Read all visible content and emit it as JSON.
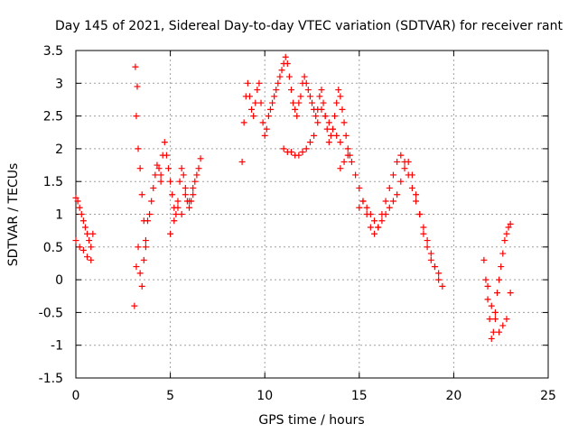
{
  "chart_data": {
    "type": "scatter",
    "title": "Day 145 of 2021, Sidereal Day-to-day VTEC variation (SDTVAR) for receiver rant",
    "xlabel": "GPS time / hours",
    "ylabel": "SDTVAR / TECUs",
    "xlim": [
      0,
      25
    ],
    "ylim": [
      -1.5,
      3.5
    ],
    "x_ticks": [
      0,
      5,
      10,
      15,
      20,
      25
    ],
    "y_ticks": [
      -1.5,
      -1,
      -0.5,
      0,
      0.5,
      1,
      1.5,
      2,
      2.5,
      3,
      3.5
    ],
    "x_tick_labels": [
      "0",
      "5",
      "10",
      "15",
      "20",
      "25"
    ],
    "y_tick_labels": [
      "-1.5",
      "-1",
      "-0.5",
      "0",
      "0.5",
      "1",
      "1.5",
      "2",
      "2.5",
      "3",
      "3.5"
    ],
    "grid": true,
    "marker": "+",
    "color": "#ff0000",
    "series": [
      {
        "name": "SDTVAR",
        "x": [
          0.0,
          0.1,
          0.2,
          0.3,
          0.4,
          0.5,
          0.6,
          0.7,
          0.8,
          0.9,
          0.0,
          0.2,
          0.4,
          0.6,
          0.8,
          3.1,
          3.2,
          3.3,
          3.4,
          3.5,
          3.6,
          3.7,
          3.8,
          3.9,
          4.0,
          4.1,
          4.2,
          4.3,
          4.4,
          4.5,
          3.15,
          3.25,
          3.2,
          3.3,
          3.4,
          3.5,
          3.6,
          3.7,
          4.5,
          4.6,
          4.7,
          4.8,
          4.9,
          5.0,
          5.1,
          5.2,
          5.3,
          5.4,
          5.5,
          5.6,
          5.7,
          5.8,
          5.9,
          6.0,
          6.1,
          6.2,
          6.3,
          6.4,
          6.5,
          6.6,
          5.0,
          5.2,
          5.4,
          5.6,
          5.8,
          6.0,
          6.2,
          8.8,
          8.9,
          9.0,
          9.1,
          9.2,
          9.3,
          9.4,
          9.5,
          9.6,
          9.7,
          9.8,
          9.9,
          10.0,
          10.1,
          10.2,
          10.3,
          10.4,
          10.5,
          10.6,
          10.7,
          10.8,
          10.9,
          11.0,
          11.1,
          11.2,
          11.3,
          11.4,
          11.5,
          11.6,
          11.7,
          11.8,
          11.9,
          11.0,
          11.2,
          11.4,
          11.6,
          11.8,
          12.0,
          12.2,
          12.4,
          12.6,
          12.8,
          13.0,
          13.2,
          13.4,
          13.6,
          13.8,
          14.0,
          12.0,
          12.1,
          12.2,
          12.3,
          12.4,
          12.5,
          12.6,
          12.7,
          12.8,
          12.9,
          13.0,
          13.1,
          13.2,
          13.3,
          13.4,
          13.5,
          13.6,
          13.7,
          13.8,
          13.9,
          14.0,
          14.1,
          14.2,
          14.3,
          14.4,
          14.5,
          14.0,
          14.2,
          14.4,
          14.6,
          14.8,
          15.0,
          15.2,
          15.4,
          15.6,
          15.8,
          16.0,
          16.2,
          16.4,
          16.6,
          16.8,
          17.0,
          17.2,
          17.4,
          17.6,
          17.8,
          18.0,
          18.2,
          18.4,
          18.6,
          18.8,
          19.0,
          19.2,
          19.4,
          15.0,
          15.2,
          15.4,
          15.6,
          15.8,
          16.0,
          16.2,
          16.4,
          16.6,
          16.8,
          17.0,
          17.2,
          17.4,
          17.6,
          17.8,
          18.0,
          18.2,
          18.4,
          18.6,
          18.8,
          19.0,
          19.2,
          21.6,
          21.7,
          21.8,
          21.9,
          22.0,
          22.1,
          22.2,
          22.3,
          22.4,
          22.5,
          22.6,
          22.7,
          22.8,
          22.9,
          23.0,
          21.8,
          22.0,
          22.2,
          22.4,
          22.6,
          22.8,
          23.0
        ],
        "y": [
          1.25,
          1.2,
          1.1,
          1.0,
          0.9,
          0.8,
          0.7,
          0.6,
          0.5,
          0.7,
          0.6,
          0.5,
          0.45,
          0.35,
          0.3,
          -0.4,
          0.2,
          0.5,
          0.1,
          -0.1,
          0.3,
          0.6,
          0.9,
          1.0,
          1.2,
          1.4,
          1.6,
          1.75,
          1.7,
          1.5,
          3.25,
          2.95,
          2.5,
          2.0,
          1.7,
          1.3,
          0.9,
          0.5,
          1.6,
          1.9,
          2.1,
          1.9,
          1.7,
          1.5,
          1.3,
          1.1,
          1.0,
          1.2,
          1.5,
          1.7,
          1.6,
          1.4,
          1.2,
          1.1,
          1.2,
          1.3,
          1.5,
          1.6,
          1.7,
          1.85,
          0.7,
          0.9,
          1.1,
          1.0,
          1.3,
          1.2,
          1.4,
          1.8,
          2.4,
          2.8,
          3.0,
          2.8,
          2.6,
          2.5,
          2.7,
          2.9,
          3.0,
          2.7,
          2.4,
          2.2,
          2.3,
          2.5,
          2.6,
          2.7,
          2.8,
          2.9,
          3.0,
          3.1,
          3.2,
          3.3,
          3.4,
          3.3,
          3.1,
          2.9,
          2.7,
          2.6,
          2.5,
          2.7,
          2.8,
          2.0,
          1.95,
          1.95,
          1.9,
          1.9,
          1.95,
          2.0,
          2.1,
          2.2,
          2.4,
          2.6,
          2.5,
          2.4,
          2.3,
          2.2,
          2.1,
          3.0,
          3.1,
          3.0,
          2.9,
          2.8,
          2.7,
          2.6,
          2.5,
          2.6,
          2.8,
          2.9,
          2.7,
          2.5,
          2.3,
          2.1,
          2.2,
          2.3,
          2.5,
          2.7,
          2.9,
          2.8,
          2.6,
          2.4,
          2.2,
          2.0,
          1.9,
          1.7,
          1.8,
          1.9,
          1.8,
          1.6,
          1.4,
          1.2,
          1.0,
          0.8,
          0.7,
          0.8,
          1.0,
          1.2,
          1.4,
          1.6,
          1.8,
          1.9,
          1.8,
          1.6,
          1.4,
          1.2,
          1.0,
          0.8,
          0.6,
          0.4,
          0.2,
          0.0,
          -0.1,
          1.1,
          1.2,
          1.1,
          1.0,
          0.9,
          0.8,
          0.9,
          1.0,
          1.1,
          1.2,
          1.3,
          1.5,
          1.7,
          1.8,
          1.6,
          1.3,
          1.0,
          0.7,
          0.5,
          0.3,
          0.2,
          0.1,
          0.3,
          0.0,
          -0.3,
          -0.6,
          -0.9,
          -0.8,
          -0.5,
          -0.2,
          0.0,
          0.2,
          0.4,
          0.6,
          0.7,
          0.8,
          0.85,
          -0.1,
          -0.4,
          -0.6,
          -0.8,
          -0.7,
          -0.6,
          -0.2
        ]
      }
    ]
  }
}
